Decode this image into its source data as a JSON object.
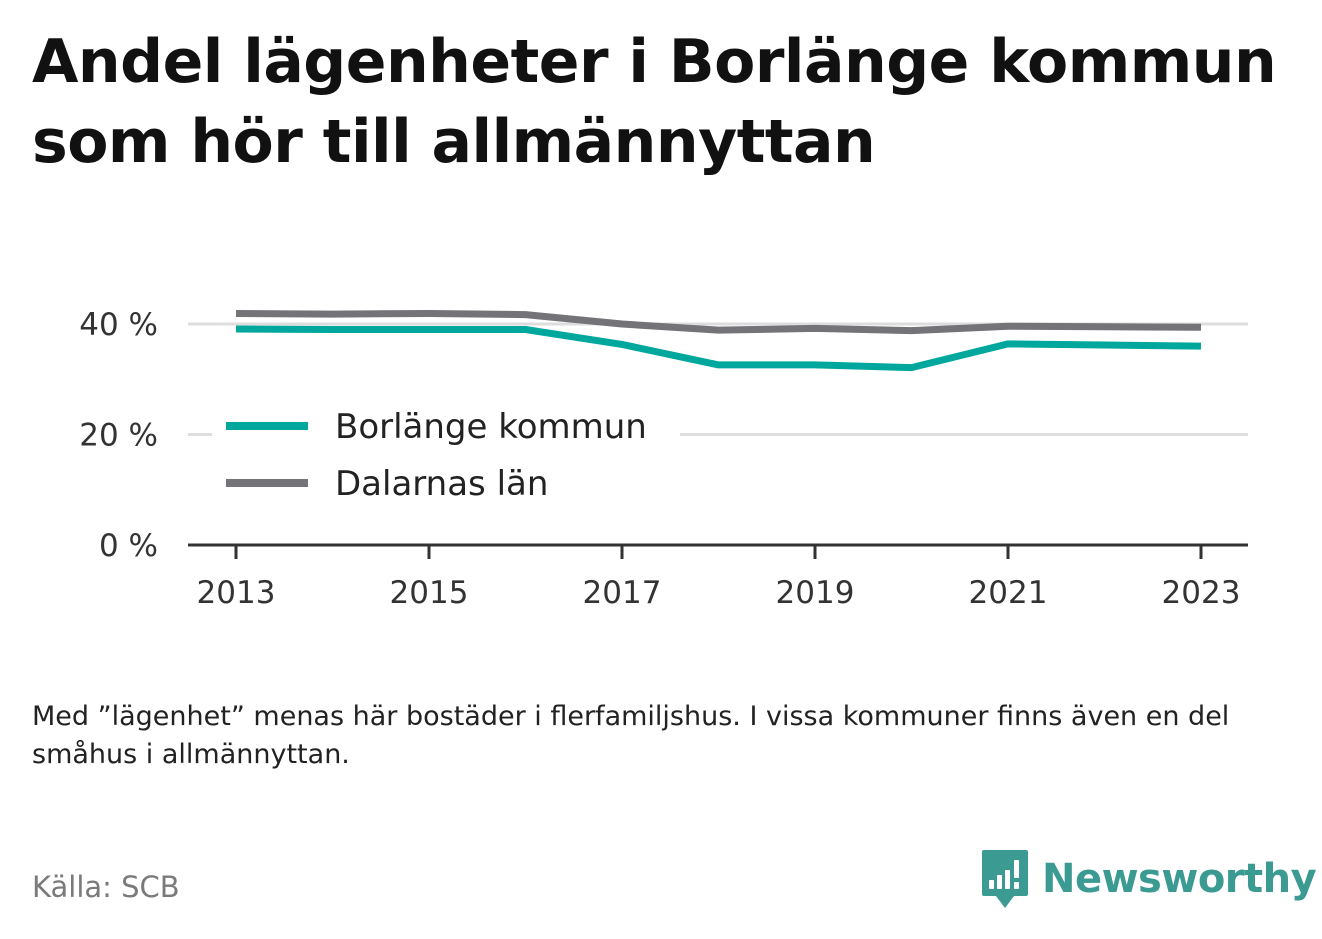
{
  "title": {
    "line1": "Andel lägenheter i Borlänge kommun",
    "line2": "som hör till allmännyttan"
  },
  "chart_data": {
    "type": "line",
    "x": [
      2013,
      2014,
      2015,
      2016,
      2017,
      2018,
      2019,
      2020,
      2021,
      2022,
      2023
    ],
    "x_ticks": [
      "2013",
      "2015",
      "2017",
      "2019",
      "2021",
      "2023"
    ],
    "y_ticks": [
      "0 %",
      "20 %",
      "40 %"
    ],
    "ylim": [
      0,
      40
    ],
    "grid": true,
    "legend_placement": "center-left",
    "series": [
      {
        "name": "Borlänge kommun",
        "color": "#00a79d",
        "values": [
          39.1,
          39.0,
          39.0,
          39.0,
          36.3,
          32.6,
          32.6,
          32.1,
          36.4,
          36.2,
          36.0
        ]
      },
      {
        "name": "Dalarnas län",
        "color": "#737378",
        "values": [
          41.9,
          41.8,
          41.9,
          41.7,
          40.0,
          38.9,
          39.2,
          38.8,
          39.6,
          39.5,
          39.4
        ]
      }
    ]
  },
  "note": "Med ”lägenhet” menas här bostäder i flerfamiljshus. I vissa kommuner finns även en del småhus i allmännyttan.",
  "source": "Källa: SCB",
  "brand": {
    "name": "Newsworthy",
    "icon": "newsworthy-logo-icon",
    "color": "#3b9a92"
  }
}
